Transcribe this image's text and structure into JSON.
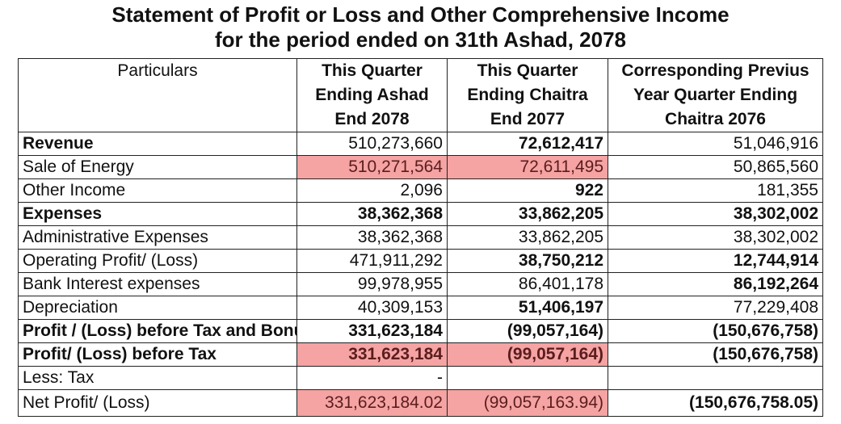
{
  "title_line1": "Statement of Profit or Loss and Other Comprehensive Income",
  "title_line2": "for the period ended on 31th Ashad, 2078",
  "columns": [
    "Particulars",
    "This Quarter Ending Ashad End 2078",
    "This Quarter Ending Chaitra End 2077",
    "Corresponding Previus Year Quarter Ending Chaitra 2076"
  ],
  "highlight_color": "#f5a3a3",
  "rows": [
    {
      "label": "Revenue",
      "c1": "510,273,660",
      "c2": "72,612,417",
      "c3": "51,046,916"
    },
    {
      "label": "Sale of Energy",
      "c1": "510,271,564",
      "c2": "72,611,495",
      "c3": "50,865,560"
    },
    {
      "label": "Other Income",
      "c1": "2,096",
      "c2": "922",
      "c3": "181,355"
    },
    {
      "label": "Expenses",
      "c1": "38,362,368",
      "c2": "33,862,205",
      "c3": "38,302,002"
    },
    {
      "label": "Administrative Expenses",
      "c1": "38,362,368",
      "c2": "33,862,205",
      "c3": "38,302,002"
    },
    {
      "label": "Operating Profit/ (Loss)",
      "c1": "471,911,292",
      "c2": "38,750,212",
      "c3": "12,744,914"
    },
    {
      "label": "Bank Interest expenses",
      "c1": "99,978,955",
      "c2": "86,401,178",
      "c3": "86,192,264"
    },
    {
      "label": "Depreciation",
      "c1": "40,309,153",
      "c2": "51,406,197",
      "c3": "77,229,408"
    },
    {
      "label": "Profit / (Loss) before Tax and Bonus",
      "c1": "331,623,184",
      "c2": "(99,057,164)",
      "c3": "(150,676,758)"
    },
    {
      "label": "Profit/ (Loss) before Tax",
      "c1": "331,623,184",
      "c2": "(99,057,164)",
      "c3": "(150,676,758)"
    },
    {
      "label": "Less: Tax",
      "c1": "-",
      "c2": "",
      "c3": ""
    },
    {
      "label": "Net Profit/ (Loss)",
      "c1": "331,623,184.02",
      "c2": "(99,057,163.94)",
      "c3": "(150,676,758.05)"
    }
  ]
}
